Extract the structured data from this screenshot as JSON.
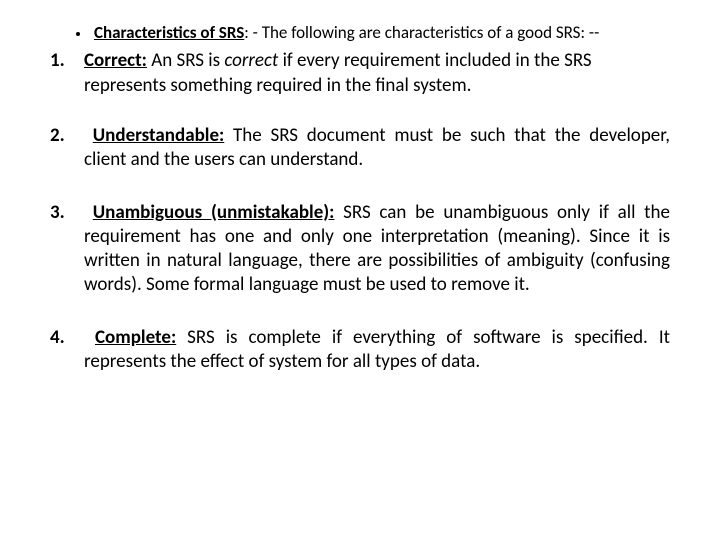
{
  "header": {
    "title_label": "Characteristics of SRS",
    "title_rest": ": - The following are characteristics of a good SRS: --"
  },
  "items": [
    {
      "num": "1.",
      "label": "Correct:",
      "pre": "  An SRS is ",
      "italic": "correct",
      "post": " if every requirement included in the SRS represents something required in the final system."
    },
    {
      "num": "2.",
      "label": "Understandable:",
      "rest": " The SRS document must be such that the developer, client and the users can understand."
    },
    {
      "num": "3.",
      "label": "Unambiguous (unmistakable):",
      "rest": " SRS can be unambiguous only if all the requirement has one and only one interpretation (meaning). Since it is written in natural language, there are possibilities of ambiguity (confusing words). Some formal language must be used to remove it."
    },
    {
      "num": "4.",
      "label": "Complete:",
      "rest": " SRS is complete if everything of software is specified. It represents the effect of system for all types of data."
    }
  ],
  "style": {
    "background_color": "#ffffff",
    "text_color": "#000000",
    "title_fontsize": 17,
    "body_fontsize": 19,
    "font_family": "Calibri"
  }
}
